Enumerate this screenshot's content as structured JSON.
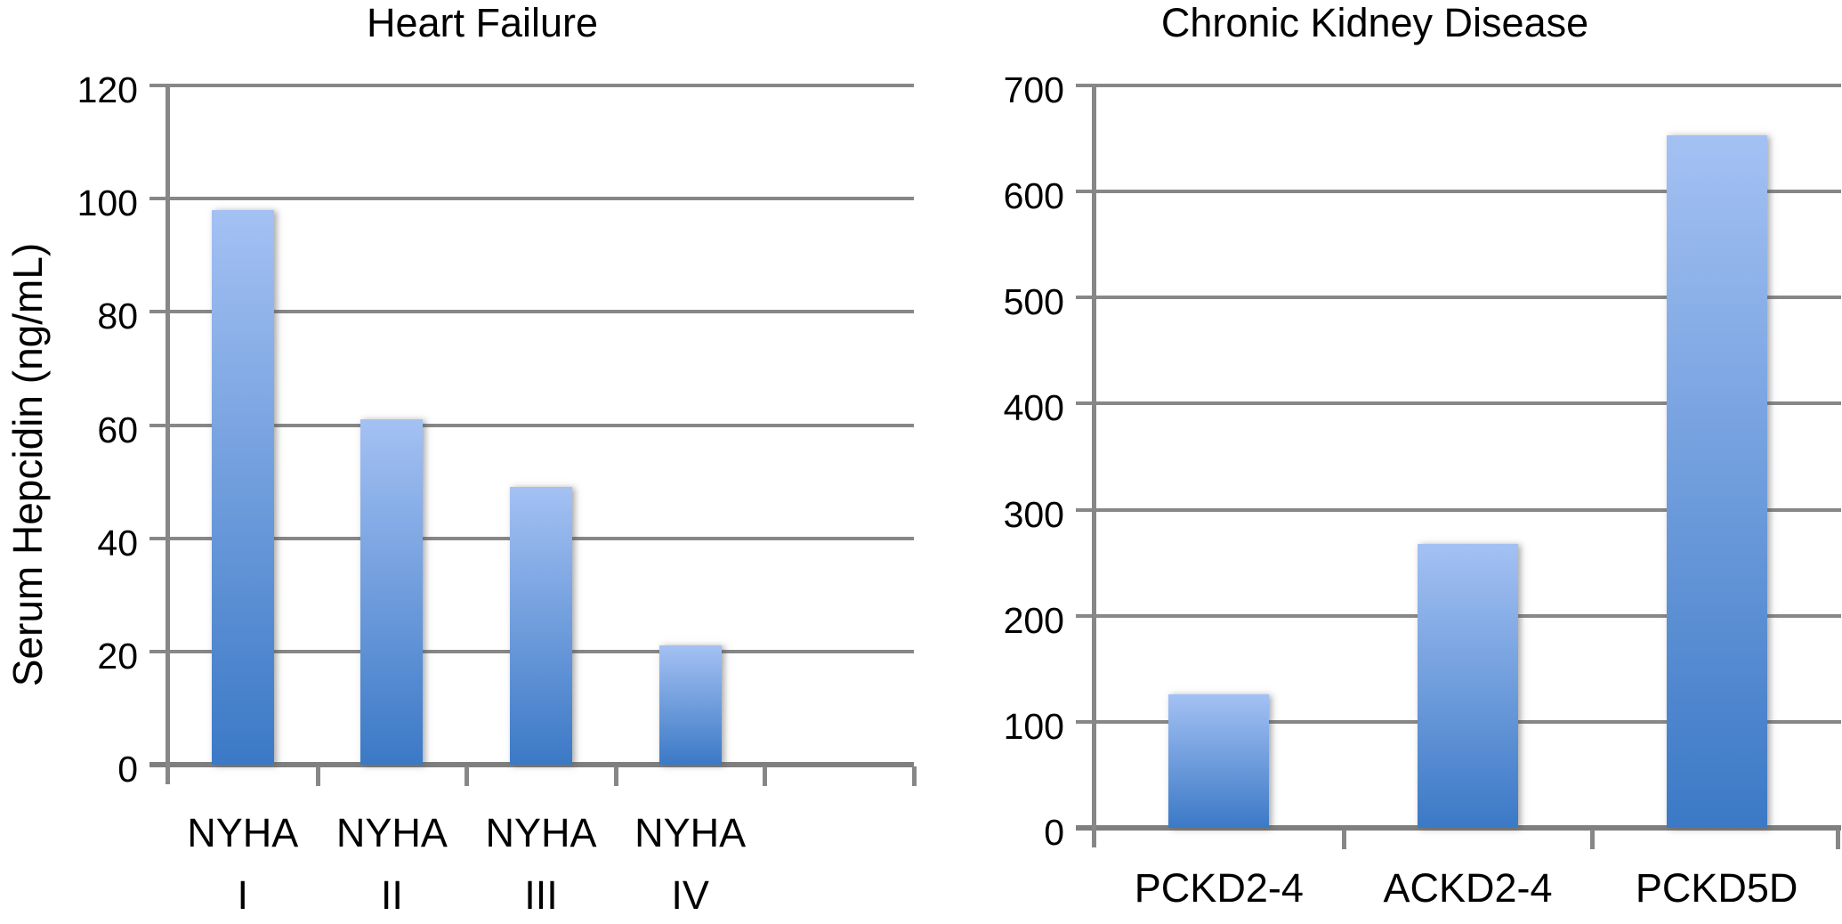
{
  "figure": {
    "background": "#ffffff"
  },
  "styles": {
    "grid_color": "#878787",
    "axis_color": "#7f7f7f",
    "text_color": "#000000",
    "bar_gradient_top": "#a4c1f3",
    "bar_gradient_bottom": "#3b79c6"
  },
  "chart_data": [
    {
      "type": "bar",
      "title": "Heart Failure",
      "xlabel": "",
      "ylabel": "Serum Hepcidin (ng/mL)",
      "categories": [
        "NYHA I",
        "NYHA II",
        "NYHA III",
        "NYHA IV"
      ],
      "category_label_lines": [
        [
          "NYHA",
          "I"
        ],
        [
          "NYHA",
          "II"
        ],
        [
          "NYHA",
          "III"
        ],
        [
          "NYHA",
          "IV"
        ]
      ],
      "values": [
        98,
        61,
        49,
        21
      ],
      "ylim": [
        0,
        120
      ],
      "yticks": [
        0,
        20,
        40,
        60,
        80,
        100,
        120
      ],
      "grid": true,
      "legend": false
    },
    {
      "type": "bar",
      "title": "Chronic Kidney Disease",
      "xlabel": "",
      "ylabel": "",
      "categories": [
        "PCKD2-4",
        "ACKD2-4",
        "PCKD5D"
      ],
      "category_label_lines": [
        [
          "PCKD2-4"
        ],
        [
          "ACKD2-4"
        ],
        [
          "PCKD5D"
        ]
      ],
      "values": [
        126,
        268,
        653
      ],
      "ylim": [
        0,
        700
      ],
      "yticks": [
        0,
        100,
        200,
        300,
        400,
        500,
        600,
        700
      ],
      "grid": true,
      "legend": false
    }
  ]
}
